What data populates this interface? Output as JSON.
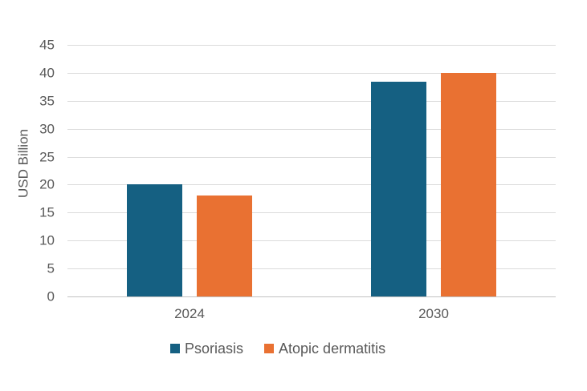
{
  "chart_data": {
    "type": "bar",
    "title": "",
    "categories": [
      "2024",
      "2030"
    ],
    "series": [
      {
        "name": "Psoriasis",
        "color": "#156082",
        "values": [
          20,
          38.4
        ]
      },
      {
        "name": "Atopic dermatitis",
        "color": "#E97132",
        "values": [
          18,
          40
        ]
      }
    ],
    "xlabel": "",
    "ylabel": "USD Billion",
    "ylim": [
      0,
      45
    ],
    "ytick_step": 5,
    "yticks": [
      0,
      5,
      10,
      15,
      20,
      25,
      30,
      35,
      40,
      45
    ],
    "grid": true,
    "legend_position": "bottom"
  },
  "styles": {
    "background": "#FFFFFF",
    "text_color": "#595959",
    "gridline_color": "#DBDBDB",
    "axis_line_color": "#C1C1C1"
  }
}
